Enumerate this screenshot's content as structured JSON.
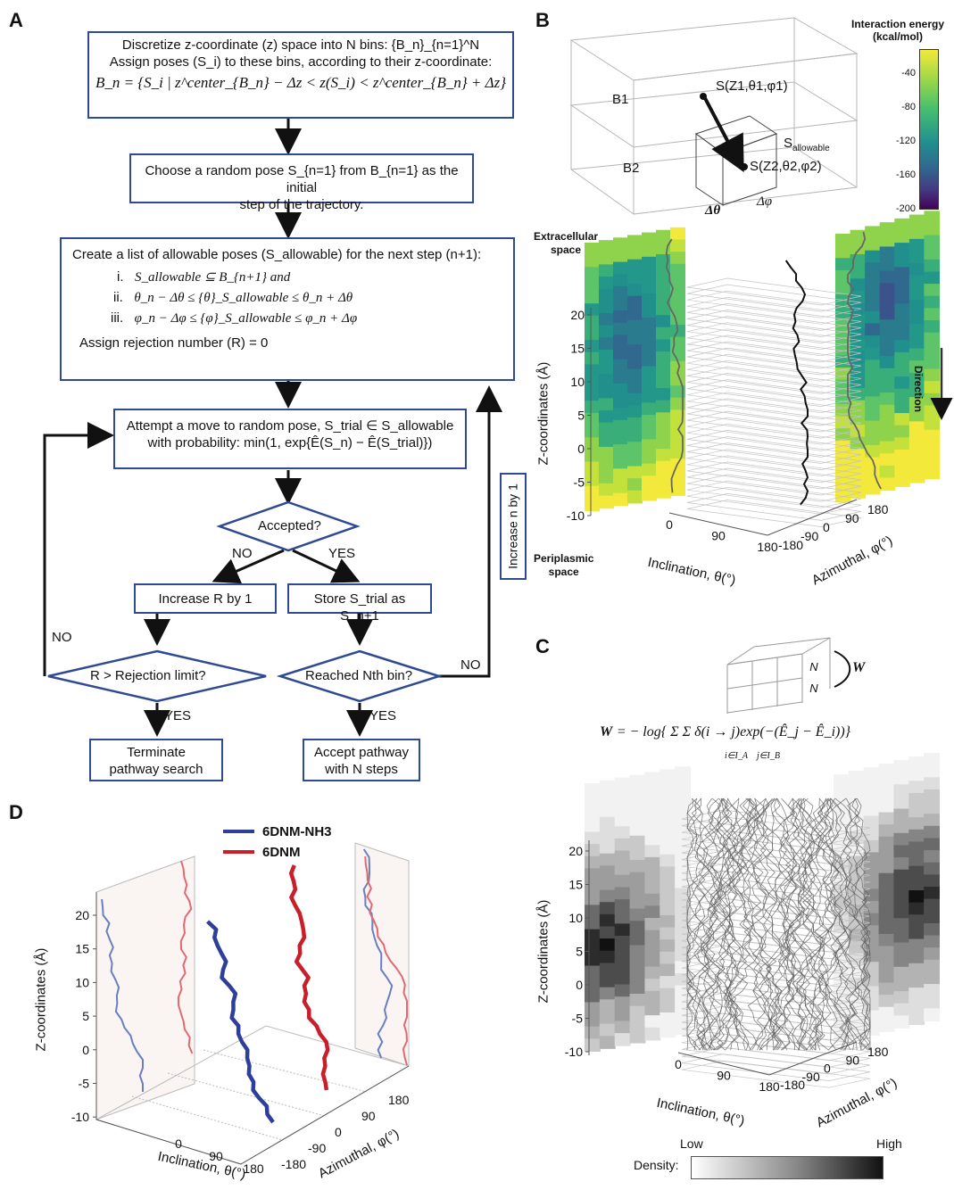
{
  "panels": {
    "A": "A",
    "B": "B",
    "C": "C",
    "D": "D"
  },
  "flow": {
    "box1": {
      "line1": "Discretize z-coordinate (z) space into N bins: {B_n}_{n=1}^N",
      "line2": "Assign poses (S_i) to these bins, according to their z-coordinate:",
      "line3": "B_n = {S_i | z^center_{B_n} − Δz < z(S_i) < z^center_{B_n} + Δz}"
    },
    "box2": {
      "line1": "Choose a random pose S_{n=1} from B_{n=1} as the initial",
      "line2": "step of the trajectory."
    },
    "box3": {
      "title": "Create a list of allowable poses (S_allowable) for the next step (n+1):",
      "i": "S_allowable ⊆ B_{n+1}  and",
      "ii": "θ_n − Δθ ≤ {θ}_S_allowable ≤ θ_n + Δθ",
      "iii": "φ_n − Δφ ≤ {φ}_S_allowable ≤ φ_n + Δφ",
      "reject": "Assign rejection number (R) = 0"
    },
    "box4": {
      "line1": "Attempt a move to random pose, S_trial ∈ S_allowable",
      "line2": "with probability: min(1, exp{Ê(S_n) − Ê(S_trial)})"
    },
    "accepted": "Accepted?",
    "no": "NO",
    "yes": "YES",
    "increaseR": "Increase R by 1",
    "store": "Store S_trial as S_n+1",
    "rejectLimit": "R > Rejection limit?",
    "reachedN": "Reached Nth bin?",
    "terminate": {
      "line1": "Terminate",
      "line2": "pathway search"
    },
    "accept": {
      "line1": "Accept pathway",
      "line2": "with N steps"
    },
    "increaseN": "Increase n by 1"
  },
  "panelB": {
    "cube_labels": {
      "b1": "B1",
      "b2": "B2",
      "s1": "S(Z1,θ1,φ1)",
      "s2": "S(Z2,θ2,φ2)",
      "sallow": "S",
      "sallow_sub": "allowable",
      "dtheta": "Δθ",
      "dphi": "Δφ"
    },
    "colorbar": {
      "title1": "Interaction energy",
      "title2": "(kcal/mol)",
      "ticks": [
        "-40",
        "-80",
        "-120",
        "-160",
        "-200"
      ],
      "colors": [
        "#f2e93a",
        "#5ec46a",
        "#21908d",
        "#3b528b",
        "#440154"
      ]
    },
    "extracellular": [
      "Extracellular",
      "space"
    ],
    "periplasmic": [
      "Periplasmic",
      "space"
    ],
    "zlabel": "Z-coordinates (Å)",
    "zticks": [
      "20",
      "15",
      "10",
      "5",
      "0",
      "-5",
      "-10"
    ],
    "incl_label": "Inclination, θ(°)",
    "incl_ticks": [
      "0",
      "90",
      "180"
    ],
    "azi_label": "Azimuthal, φ(°)",
    "azi_ticks": [
      "-180",
      "-90",
      "0",
      "90",
      "180"
    ],
    "direction": "Direction"
  },
  "panelC": {
    "formula_lhs": "W",
    "formula": "= − log{ Σ Σ δ(i → j)exp(−(Ê_j − Ê_i))}",
    "sum_sub1": "i∈I_A",
    "sum_sub2": "j∈I_B",
    "cube_weight": "W",
    "zlabel": "Z-coordinates (Å)",
    "zticks": [
      "20",
      "15",
      "10",
      "5",
      "0",
      "-5",
      "-10"
    ],
    "incl_label": "Inclination, θ(°)",
    "incl_ticks": [
      "0",
      "90",
      "180"
    ],
    "azi_label": "Azimuthal, φ(°)",
    "azi_ticks": [
      "-180",
      "-90",
      "0",
      "90",
      "180"
    ],
    "density_label": "Density:",
    "low": "Low",
    "high": "High"
  },
  "panelD": {
    "legend": [
      {
        "name": "6DNM-NH3",
        "color": "#2d3f9a"
      },
      {
        "name": "6DNM",
        "color": "#c8202a"
      }
    ],
    "zlabel": "Z-coordinates (Å)",
    "zticks": [
      "20",
      "15",
      "10",
      "5",
      "0",
      "-5",
      "-10"
    ],
    "incl_label": "Inclination, θ(°)",
    "incl_ticks": [
      "0",
      "90",
      "180"
    ],
    "azi_label": "Azimuthal, φ(°)",
    "azi_ticks": [
      "-180",
      "-90",
      "0",
      "90",
      "180"
    ]
  }
}
